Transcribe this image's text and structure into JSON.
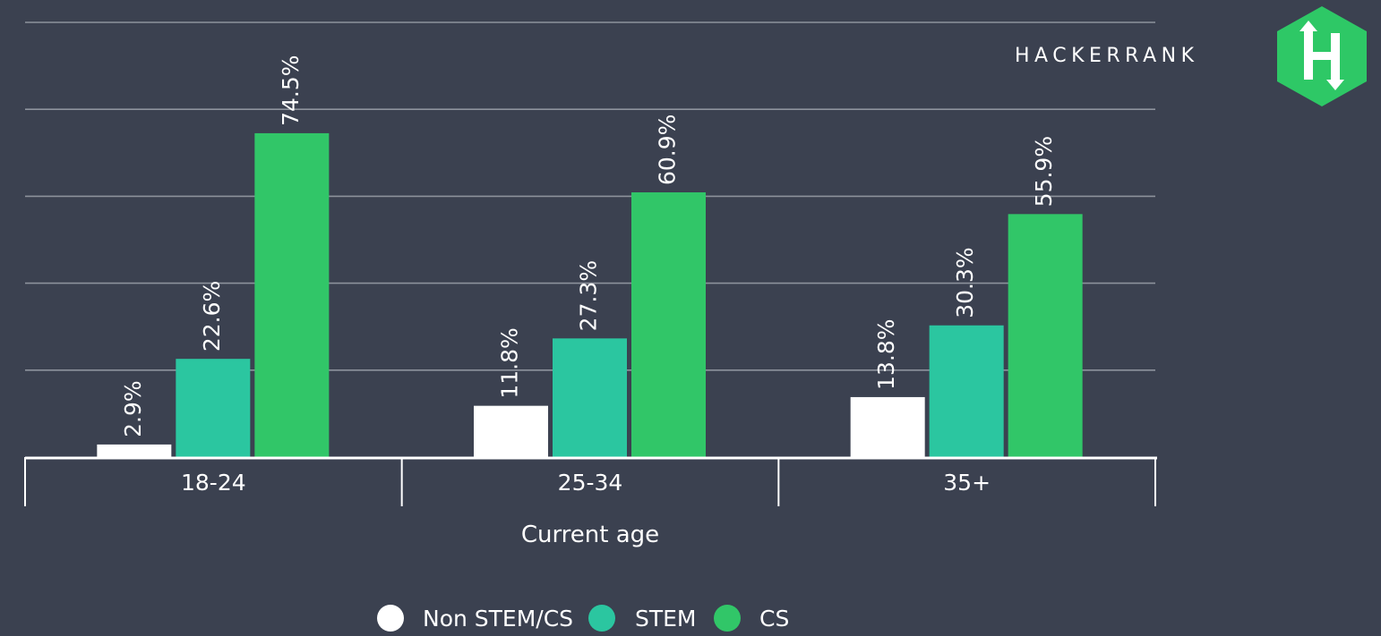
{
  "brand": {
    "wordmark": "HACKERRANK",
    "logo_letter": "H",
    "logo_color": "#2ec866"
  },
  "chart_data": {
    "type": "bar",
    "categories": [
      "18-24",
      "25-34",
      "35+"
    ],
    "series": [
      {
        "name": "Non STEM/CS",
        "values": [
          2.9,
          11.8,
          13.8
        ],
        "labels": [
          "2.9%",
          "11.8%",
          "13.8%"
        ],
        "color": "#ffffff"
      },
      {
        "name": "STEM",
        "values": [
          22.6,
          27.3,
          30.3
        ],
        "labels": [
          "22.6%",
          "27.3%",
          "30.3%"
        ],
        "color": "#2bc6a0"
      },
      {
        "name": "CS",
        "values": [
          74.5,
          60.9,
          55.9
        ],
        "labels": [
          "74.5%",
          "60.9%",
          "55.9%"
        ],
        "color": "#31c668"
      }
    ],
    "title": "",
    "xlabel": "Current age",
    "ylabel": "",
    "ylim": [
      0,
      100
    ],
    "grid": true,
    "legend_position": "bottom",
    "colors": {
      "background": "#3b4150",
      "grid": "#8d929c",
      "axis": "#ffffff"
    }
  }
}
